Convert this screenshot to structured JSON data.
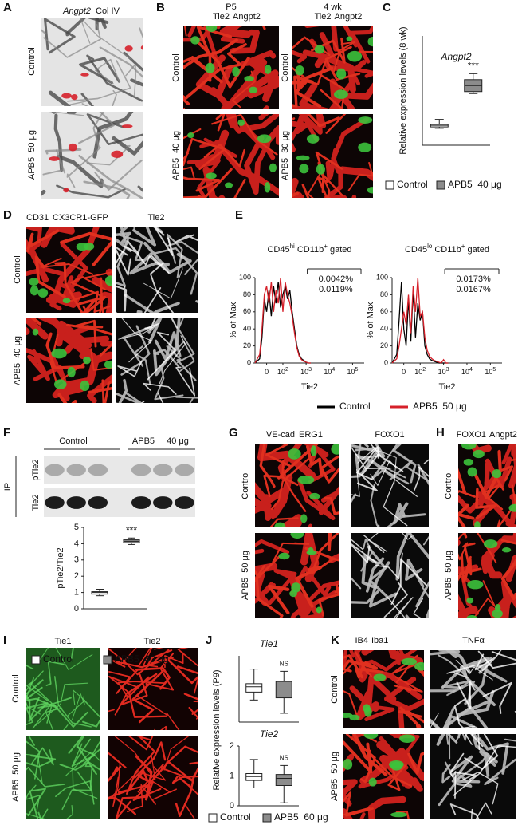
{
  "panels": {
    "A": {
      "letter": "A",
      "stains": [
        "Angpt2",
        "Col IV"
      ],
      "rows": [
        "Control",
        "APB5  50 μg"
      ]
    },
    "B": {
      "letter": "B",
      "columns": [
        {
          "age": "P5",
          "stains": [
            "Tie2",
            "Angpt2"
          ],
          "rows": [
            "Control",
            "APB5  40 μg"
          ]
        },
        {
          "age": "4 wk",
          "stains": [
            "Tie2",
            "Angpt2"
          ],
          "rows": [
            "Control",
            "APB5  30 μg"
          ]
        }
      ]
    },
    "C": {
      "letter": "C"
    },
    "D": {
      "letter": "D",
      "stains": [
        "CD31",
        "CX3CR1-GFP",
        "Tie2"
      ],
      "rows": [
        "Control",
        "APB5  40 μg"
      ]
    },
    "E": {
      "letter": "E"
    },
    "F": {
      "letter": "F",
      "groups": [
        "Control",
        "APB5",
        "40 μg"
      ],
      "ip": "IP",
      "lanes": [
        "pTie2",
        "Tie2"
      ]
    },
    "G": {
      "letter": "G",
      "stains": [
        "VE-cad",
        "ERG1",
        "FOXO1"
      ],
      "rows": [
        "Control",
        "APB5  50 μg"
      ]
    },
    "H": {
      "letter": "H",
      "stains": [
        "FOXO1",
        "Angpt2"
      ],
      "rows": [
        "Control",
        "APB5  50 μg"
      ]
    },
    "I": {
      "letter": "I",
      "stains": [
        "Tie1",
        "Tie2"
      ],
      "rows": [
        "Control",
        "APB5  50 μg"
      ]
    },
    "J": {
      "letter": "J",
      "ylabel": "Relative expression levels (P9)"
    },
    "K": {
      "letter": "K",
      "stains": [
        "IB4",
        "Iba1",
        "TNFα"
      ],
      "rows": [
        "Control",
        "APB5  50 μg"
      ]
    }
  },
  "chart_data": [
    {
      "type": "box",
      "title": "Angpt2",
      "ylabel": "Relative expression levels (8 wk)",
      "ylim": [
        0,
        5.5
      ],
      "series": [
        {
          "name": "Control",
          "color": "#ffffff",
          "whislo": 0.85,
          "q1": 0.92,
          "median": 1.0,
          "q3": 1.05,
          "whishi": 1.3
        },
        {
          "name": "APB5  40 μg",
          "color": "#8c8c8c",
          "whislo": 2.6,
          "q1": 2.7,
          "median": 3.0,
          "q3": 3.3,
          "whishi": 3.6
        }
      ],
      "annotations": [
        {
          "text": "***",
          "series": 1
        }
      ]
    },
    {
      "type": "histogram-line",
      "title_parts": [
        "CD45",
        "hi",
        " CD11b",
        "+",
        " gated"
      ],
      "ylabel": "% of Max",
      "xlabel": "Tie2",
      "xlim": [
        0.8,
        5.5
      ],
      "xticks": [
        {
          "value": 1.3,
          "label": "0"
        },
        {
          "value": 2,
          "label": "10",
          "exp": "2"
        },
        {
          "value": 3,
          "label": "10",
          "exp": "3"
        },
        {
          "value": 4,
          "label": "10",
          "exp": "4"
        },
        {
          "value": 5,
          "label": "10",
          "exp": "5"
        }
      ],
      "ylim": [
        0,
        100
      ],
      "yticks": [
        0,
        20,
        40,
        60,
        80,
        100
      ],
      "x": [
        0.8,
        1.0,
        1.1,
        1.2,
        1.3,
        1.4,
        1.5,
        1.6,
        1.7,
        1.8,
        1.9,
        2.0,
        2.1,
        2.2,
        2.3,
        2.4,
        2.5,
        2.6,
        2.7,
        2.8,
        2.9,
        3.0,
        3.1,
        3.2
      ],
      "series": [
        {
          "name": "Control",
          "color": "#000000",
          "values": [
            0,
            5,
            30,
            75,
            60,
            85,
            55,
            90,
            70,
            95,
            65,
            80,
            90,
            75,
            85,
            60,
            40,
            20,
            10,
            5,
            3,
            1,
            0,
            0
          ]
        },
        {
          "name": "APB5  50 μg",
          "color": "#d6202a",
          "values": [
            0,
            10,
            40,
            80,
            90,
            70,
            95,
            60,
            85,
            70,
            100,
            60,
            95,
            80,
            70,
            55,
            35,
            18,
            8,
            4,
            2,
            1,
            0,
            0
          ]
        }
      ],
      "annotations": [
        {
          "text": "0.0042%",
          "color": "#000000"
        },
        {
          "text": "0.0119%",
          "color": "#d6202a"
        }
      ]
    },
    {
      "type": "histogram-line",
      "title_parts": [
        "CD45",
        "lo",
        " CD11b",
        "+",
        " gated"
      ],
      "ylabel": "% of Max",
      "xlabel": "Tie2",
      "xlim": [
        0.8,
        5.5
      ],
      "xticks": [
        {
          "value": 1.3,
          "label": "0"
        },
        {
          "value": 2,
          "label": "10",
          "exp": "2"
        },
        {
          "value": 3,
          "label": "10",
          "exp": "3"
        },
        {
          "value": 4,
          "label": "10",
          "exp": "4"
        },
        {
          "value": 5,
          "label": "10",
          "exp": "5"
        }
      ],
      "ylim": [
        0,
        100
      ],
      "yticks": [
        0,
        20,
        40,
        60,
        80,
        100
      ],
      "x": [
        0.8,
        1.0,
        1.1,
        1.2,
        1.3,
        1.4,
        1.5,
        1.6,
        1.7,
        1.8,
        1.9,
        2.0,
        2.1,
        2.2,
        2.3,
        2.4,
        2.5,
        2.6,
        2.7,
        2.8,
        2.9,
        3.0,
        3.1,
        3.2
      ],
      "series": [
        {
          "name": "Control",
          "color": "#000000",
          "values": [
            0,
            10,
            50,
            95,
            40,
            20,
            75,
            25,
            85,
            30,
            70,
            50,
            60,
            20,
            10,
            5,
            3,
            2,
            1,
            0,
            0,
            0,
            0,
            0
          ]
        },
        {
          "name": "APB5  50 μg",
          "color": "#d6202a",
          "values": [
            0,
            5,
            20,
            40,
            60,
            45,
            80,
            35,
            90,
            60,
            100,
            55,
            60,
            30,
            15,
            8,
            5,
            3,
            2,
            1,
            0,
            4,
            0,
            0
          ]
        }
      ],
      "annotations": [
        {
          "text": "0.0173%",
          "color": "#000000"
        },
        {
          "text": "0.0167%",
          "color": "#d6202a"
        }
      ]
    },
    {
      "type": "box",
      "ylabel": "pTie2/Tie2",
      "ylim": [
        0,
        5
      ],
      "yticks": [
        0,
        1,
        2,
        3,
        4,
        5
      ],
      "series": [
        {
          "name": "Control",
          "color": "#ffffff",
          "whislo": 0.8,
          "q1": 0.9,
          "median": 1.0,
          "q3": 1.05,
          "whishi": 1.2
        },
        {
          "name": "APB5  40 μg",
          "color": "#8c8c8c",
          "whislo": 3.95,
          "q1": 4.05,
          "median": 4.15,
          "q3": 4.25,
          "whishi": 4.35
        }
      ],
      "annotations": [
        {
          "text": "***",
          "series": 1
        }
      ]
    },
    {
      "type": "box",
      "title": "Tie1",
      "ylim": [
        0.2,
        1.7
      ],
      "series": [
        {
          "name": "Control",
          "color": "#ffffff",
          "whislo": 0.7,
          "q1": 0.88,
          "median": 1.0,
          "q3": 1.07,
          "whishi": 1.4
        },
        {
          "name": "APB5  60 μg",
          "color": "#8c8c8c",
          "whislo": 0.4,
          "q1": 0.75,
          "median": 0.95,
          "q3": 1.12,
          "whishi": 1.35
        }
      ],
      "annotations": [
        {
          "text": "NS",
          "series": 1
        }
      ]
    },
    {
      "type": "box",
      "title": "Tie2",
      "ylim": [
        0,
        2
      ],
      "yticks": [
        0,
        1,
        2
      ],
      "series": [
        {
          "name": "Control",
          "color": "#ffffff",
          "whislo": 0.6,
          "q1": 0.85,
          "median": 0.98,
          "q3": 1.08,
          "whishi": 1.55
        },
        {
          "name": "APB5  60 μg",
          "color": "#8c8c8c",
          "whislo": 0.1,
          "q1": 0.68,
          "median": 0.92,
          "q3": 1.05,
          "whishi": 1.35
        }
      ],
      "annotations": [
        {
          "text": "NS",
          "series": 1
        }
      ]
    }
  ]
}
